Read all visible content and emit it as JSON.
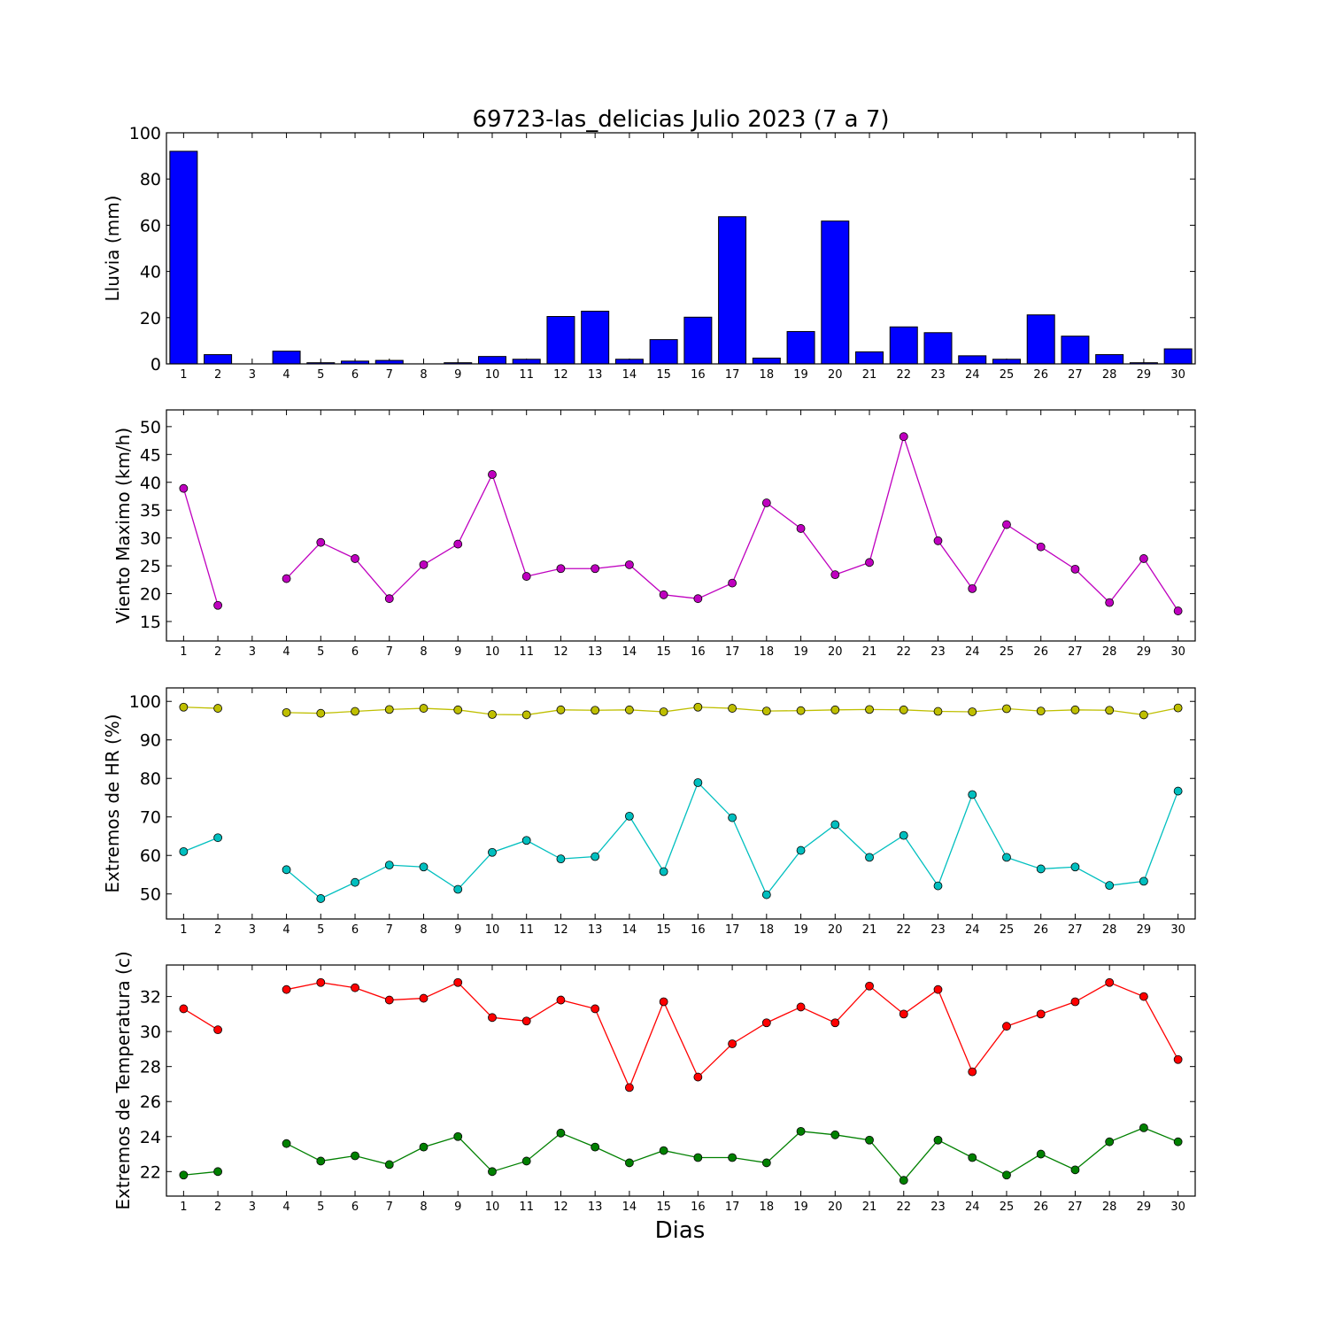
{
  "chart_data": {
    "title": "69723-las_delicias Julio 2023  (7 a 7)",
    "xlabel": "Dias",
    "days": [
      1,
      2,
      3,
      4,
      5,
      6,
      7,
      8,
      9,
      10,
      11,
      12,
      13,
      14,
      15,
      16,
      17,
      18,
      19,
      20,
      21,
      22,
      23,
      24,
      25,
      26,
      27,
      28,
      29,
      30
    ],
    "panels": [
      {
        "type": "bar",
        "ylabel": "Lluvia (mm)",
        "ylim": [
          0,
          100
        ],
        "yticks": [
          0,
          20,
          40,
          60,
          80,
          100
        ],
        "series": [
          {
            "color": "#0000ff",
            "values": [
              92,
              4,
              0,
              5.5,
              0.5,
              1.2,
              1.5,
              0,
              0.5,
              3.2,
              2,
              20.5,
              22.8,
              2,
              10.5,
              20.2,
              63.7,
              2.5,
              14,
              61.8,
              5.2,
              16,
              13.5,
              3.5,
              2,
              21.2,
              12,
              4,
              0.5,
              6.5
            ]
          }
        ]
      },
      {
        "type": "line",
        "ylabel": "Viento Maximo (km/h)",
        "ylim": [
          11.5,
          53
        ],
        "yticks": [
          15,
          20,
          25,
          30,
          35,
          40,
          45,
          50
        ],
        "series": [
          {
            "color": "#bf00bf",
            "values": [
              38.9,
              17.9,
              null,
              22.7,
              29.2,
              26.3,
              19.1,
              25.2,
              28.9,
              41.4,
              23.1,
              24.5,
              24.5,
              25.2,
              19.8,
              19.1,
              21.9,
              36.3,
              31.7,
              23.4,
              25.6,
              48.2,
              29.5,
              20.9,
              32.4,
              28.4,
              24.4,
              18.4,
              26.3,
              16.9
            ]
          }
        ]
      },
      {
        "type": "line",
        "ylabel": "Extremos de HR (%)",
        "ylim": [
          43.5,
          103.5
        ],
        "yticks": [
          50,
          60,
          70,
          80,
          90,
          100
        ],
        "series": [
          {
            "color": "#bfbf00",
            "values": [
              98.5,
              98.2,
              null,
              97.1,
              96.9,
              97.4,
              97.9,
              98.2,
              97.8,
              96.6,
              96.5,
              97.8,
              97.7,
              97.8,
              97.3,
              98.5,
              98.2,
              97.5,
              97.6,
              97.8,
              97.9,
              97.8,
              97.4,
              97.3,
              98.1,
              97.5,
              97.8,
              97.7,
              96.5,
              98.3
            ]
          },
          {
            "color": "#00bfbf",
            "values": [
              61,
              64.6,
              null,
              56.3,
              48.8,
              53,
              57.5,
              57,
              51.2,
              60.8,
              63.9,
              59.1,
              59.7,
              70.2,
              55.8,
              78.9,
              69.8,
              49.8,
              61.3,
              68,
              59.5,
              65.2,
              52.1,
              75.8,
              59.5,
              56.5,
              57,
              52.2,
              53.3,
              76.7
            ]
          }
        ]
      },
      {
        "type": "line",
        "ylabel": "Extremos de Temperatura (c)",
        "ylim": [
          20.6,
          33.8
        ],
        "yticks": [
          22,
          24,
          26,
          28,
          30,
          32
        ],
        "series": [
          {
            "color": "#ff0000",
            "values": [
              31.3,
              30.1,
              null,
              32.4,
              32.8,
              32.5,
              31.8,
              31.9,
              32.8,
              30.8,
              30.6,
              31.8,
              31.3,
              26.8,
              31.7,
              27.4,
              29.3,
              30.5,
              31.4,
              30.5,
              32.6,
              31,
              32.4,
              27.7,
              30.3,
              31,
              31.7,
              32.8,
              32,
              28.4
            ]
          },
          {
            "color": "#008000",
            "values": [
              21.8,
              22,
              null,
              23.6,
              22.6,
              22.9,
              22.4,
              23.4,
              24,
              22,
              22.6,
              24.2,
              23.4,
              22.5,
              23.2,
              22.8,
              22.8,
              22.5,
              24.3,
              24.1,
              23.8,
              21.5,
              23.8,
              22.8,
              21.8,
              23,
              22.1,
              23.7,
              24.5,
              23.7
            ]
          }
        ]
      }
    ]
  }
}
